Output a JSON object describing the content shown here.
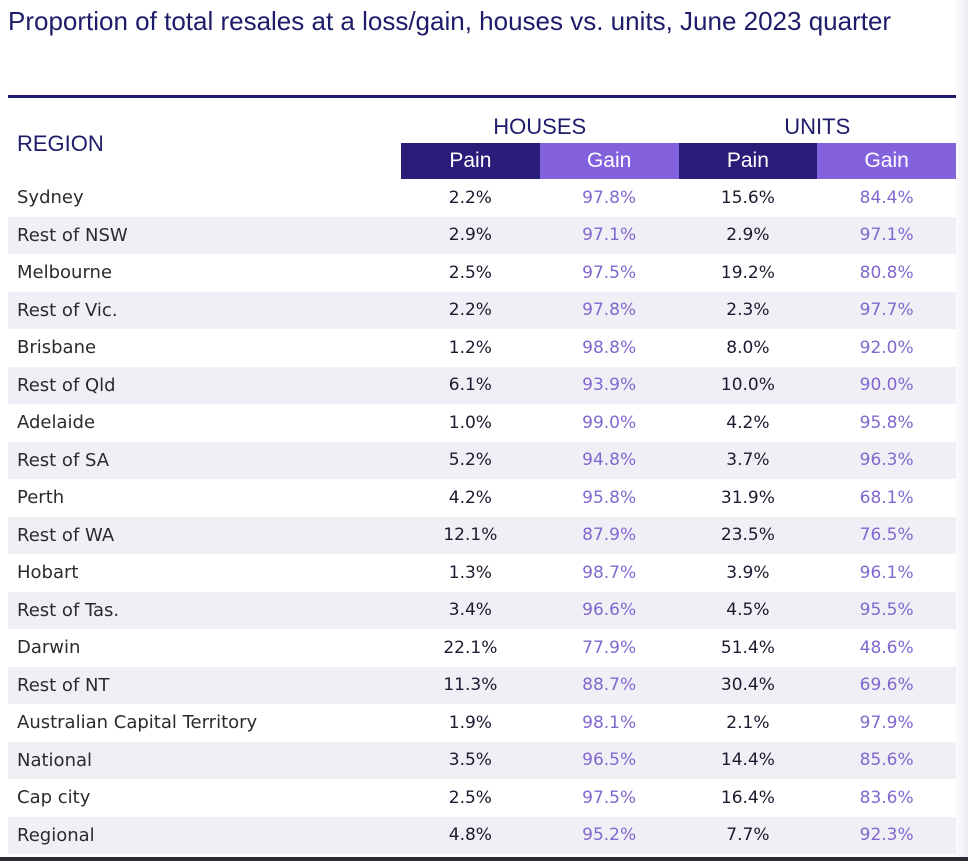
{
  "title": "Proportion of total resales at a loss/gain, houses vs. units, June 2023 quarter",
  "colors": {
    "title": "#1d1c6b",
    "pain_header": "#2a1d7a",
    "gain_header": "#8462dd",
    "gain_text": "#8068cf",
    "row_alt": "#f0eff6"
  },
  "chart_data": {
    "type": "table",
    "title": "Proportion of total resales at a loss/gain, houses vs. units, June 2023 quarter",
    "region_header": "REGION",
    "groups": [
      "HOUSES",
      "UNITS"
    ],
    "subheaders": [
      "Pain",
      "Gain",
      "Pain",
      "Gain"
    ],
    "rows": [
      {
        "region": "Sydney",
        "houses_pain": "2.2%",
        "houses_gain": "97.8%",
        "units_pain": "15.6%",
        "units_gain": "84.4%"
      },
      {
        "region": "Rest of NSW",
        "houses_pain": "2.9%",
        "houses_gain": "97.1%",
        "units_pain": "2.9%",
        "units_gain": "97.1%"
      },
      {
        "region": "Melbourne",
        "houses_pain": "2.5%",
        "houses_gain": "97.5%",
        "units_pain": "19.2%",
        "units_gain": "80.8%"
      },
      {
        "region": "Rest of Vic.",
        "houses_pain": "2.2%",
        "houses_gain": "97.8%",
        "units_pain": "2.3%",
        "units_gain": "97.7%"
      },
      {
        "region": "Brisbane",
        "houses_pain": "1.2%",
        "houses_gain": "98.8%",
        "units_pain": "8.0%",
        "units_gain": "92.0%"
      },
      {
        "region": "Rest of Qld",
        "houses_pain": "6.1%",
        "houses_gain": "93.9%",
        "units_pain": "10.0%",
        "units_gain": "90.0%"
      },
      {
        "region": "Adelaide",
        "houses_pain": "1.0%",
        "houses_gain": "99.0%",
        "units_pain": "4.2%",
        "units_gain": "95.8%"
      },
      {
        "region": "Rest of SA",
        "houses_pain": "5.2%",
        "houses_gain": "94.8%",
        "units_pain": "3.7%",
        "units_gain": "96.3%"
      },
      {
        "region": "Perth",
        "houses_pain": "4.2%",
        "houses_gain": "95.8%",
        "units_pain": "31.9%",
        "units_gain": "68.1%"
      },
      {
        "region": "Rest of WA",
        "houses_pain": "12.1%",
        "houses_gain": "87.9%",
        "units_pain": "23.5%",
        "units_gain": "76.5%"
      },
      {
        "region": "Hobart",
        "houses_pain": "1.3%",
        "houses_gain": "98.7%",
        "units_pain": "3.9%",
        "units_gain": "96.1%"
      },
      {
        "region": "Rest of Tas.",
        "houses_pain": "3.4%",
        "houses_gain": "96.6%",
        "units_pain": "4.5%",
        "units_gain": "95.5%"
      },
      {
        "region": "Darwin",
        "houses_pain": "22.1%",
        "houses_gain": "77.9%",
        "units_pain": "51.4%",
        "units_gain": "48.6%"
      },
      {
        "region": "Rest of NT",
        "houses_pain": "11.3%",
        "houses_gain": "88.7%",
        "units_pain": "30.4%",
        "units_gain": "69.6%"
      },
      {
        "region": "Australian Capital Territory",
        "houses_pain": "1.9%",
        "houses_gain": "98.1%",
        "units_pain": "2.1%",
        "units_gain": "97.9%"
      },
      {
        "region": "National",
        "houses_pain": "3.5%",
        "houses_gain": "96.5%",
        "units_pain": "14.4%",
        "units_gain": "85.6%"
      },
      {
        "region": "Cap city",
        "houses_pain": "2.5%",
        "houses_gain": "97.5%",
        "units_pain": "16.4%",
        "units_gain": "83.6%"
      },
      {
        "region": "Regional",
        "houses_pain": "4.8%",
        "houses_gain": "95.2%",
        "units_pain": "7.7%",
        "units_gain": "92.3%"
      }
    ]
  }
}
